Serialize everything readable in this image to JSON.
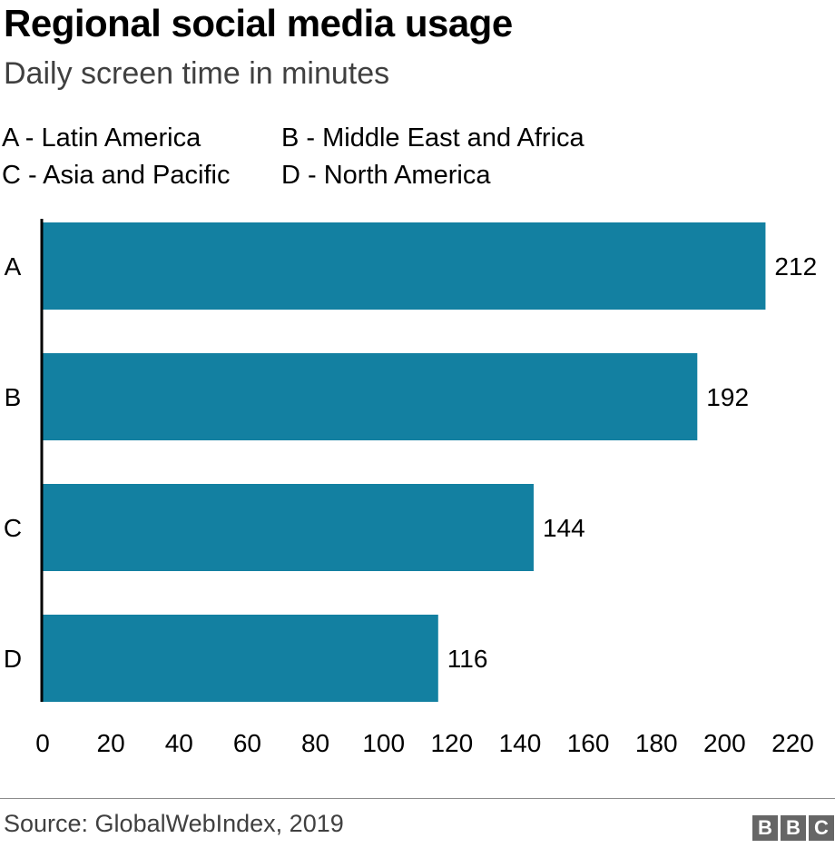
{
  "chart_data": {
    "type": "bar",
    "orientation": "horizontal",
    "title": "Regional social media usage",
    "subtitle": "Daily screen time in minutes",
    "categories": [
      "A",
      "B",
      "C",
      "D"
    ],
    "values": [
      212,
      192,
      144,
      116
    ],
    "legend": [
      {
        "key": "A",
        "text": "A - Latin America"
      },
      {
        "key": "B",
        "text": "B - Middle East and Africa"
      },
      {
        "key": "C",
        "text": "C - Asia and Pacific"
      },
      {
        "key": "D",
        "text": "D - North America"
      }
    ],
    "xticks": [
      0,
      20,
      40,
      60,
      80,
      100,
      120,
      140,
      160,
      180,
      200,
      220
    ],
    "xlim": [
      0,
      222
    ],
    "xlabel": "",
    "ylabel": "",
    "bar_color": "#1380a1",
    "source": "Source: GlobalWebIndex, 2019",
    "logo": "BBC"
  }
}
